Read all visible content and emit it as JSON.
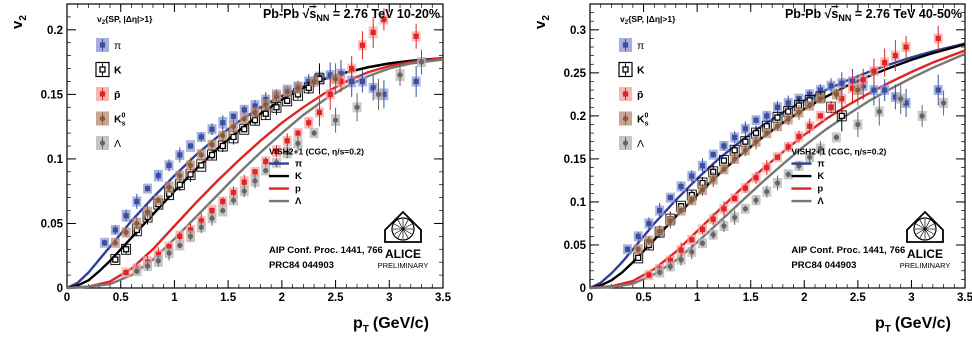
{
  "chart_data": [
    {
      "type": "scatter",
      "title": "Pb-Pb √sNN = 2.76 TeV 10-20%",
      "title_parts": {
        "system": "Pb-Pb",
        "energy_symbol": "s",
        "energy_subscript": "NN",
        "energy": "= 2.76 TeV",
        "centrality": "10-20%"
      },
      "xlabel": "p",
      "xlabel_sub": "T",
      "xlabel_unit": "(GeV/c)",
      "ylabel": "v",
      "ylabel_sub": "2",
      "xlim": [
        0,
        3.5
      ],
      "ylim": [
        0,
        0.22
      ],
      "xticks": [
        "0",
        "0.5",
        "1",
        "1.5",
        "2",
        "2.5",
        "3",
        "3.5"
      ],
      "yticks": [
        "0",
        "0.05",
        "0.1",
        "0.15",
        "0.2"
      ],
      "legend_title": "v2{SP, |Δη|>1}",
      "series": [
        {
          "name": "π",
          "color": "#3a4fa0",
          "syscolor": "#8f9ad6",
          "marker": "square",
          "x": [
            0.35,
            0.45,
            0.55,
            0.65,
            0.75,
            0.85,
            0.95,
            1.05,
            1.15,
            1.25,
            1.35,
            1.45,
            1.55,
            1.65,
            1.75,
            1.85,
            1.95,
            2.05,
            2.15,
            2.25,
            2.35,
            2.45,
            2.55,
            2.65,
            2.75,
            2.85,
            2.95,
            3.25
          ],
          "y": [
            0.035,
            0.045,
            0.056,
            0.067,
            0.077,
            0.087,
            0.095,
            0.103,
            0.11,
            0.117,
            0.123,
            0.128,
            0.133,
            0.138,
            0.141,
            0.146,
            0.15,
            0.153,
            0.156,
            0.16,
            0.163,
            0.165,
            0.166,
            0.16,
            0.16,
            0.155,
            0.15,
            0.16
          ]
        },
        {
          "name": "K",
          "color": "#000000",
          "syscolor": "#ffffff",
          "marker": "open-square",
          "x": [
            0.45,
            0.55,
            0.65,
            0.75,
            0.85,
            0.95,
            1.05,
            1.15,
            1.25,
            1.35,
            1.45,
            1.55,
            1.65,
            1.75,
            1.85,
            1.95,
            2.05,
            2.15,
            2.25,
            2.35
          ],
          "y": [
            0.022,
            0.03,
            0.045,
            0.055,
            0.065,
            0.073,
            0.08,
            0.088,
            0.095,
            0.103,
            0.11,
            0.117,
            0.123,
            0.13,
            0.135,
            0.14,
            0.145,
            0.15,
            0.155,
            0.162
          ]
        },
        {
          "name": "p̄",
          "color": "#e02424",
          "syscolor": "#f4a5a5",
          "marker": "square",
          "x": [
            0.55,
            0.65,
            0.75,
            0.85,
            0.95,
            1.05,
            1.15,
            1.25,
            1.35,
            1.45,
            1.55,
            1.65,
            1.75,
            1.85,
            1.95,
            2.05,
            2.15,
            2.25,
            2.35,
            2.45,
            2.55,
            2.65,
            2.75,
            2.85,
            2.95,
            3.25
          ],
          "y": [
            0.012,
            0.015,
            0.02,
            0.026,
            0.032,
            0.04,
            0.045,
            0.052,
            0.06,
            0.067,
            0.074,
            0.082,
            0.09,
            0.098,
            0.106,
            0.114,
            0.12,
            0.128,
            0.136,
            0.15,
            0.16,
            0.17,
            0.188,
            0.198,
            0.208,
            0.195
          ]
        },
        {
          "name": "K0s",
          "color": "#8b5a3c",
          "syscolor": "#b98f79",
          "marker": "circle",
          "x": [
            0.45,
            0.55,
            0.65,
            0.75,
            0.85,
            0.95,
            1.05,
            1.15,
            1.25,
            1.35,
            1.45,
            1.55,
            1.65,
            1.75,
            1.85,
            1.95,
            2.05,
            2.15,
            2.3,
            2.5
          ],
          "y": [
            0.035,
            0.043,
            0.05,
            0.059,
            0.068,
            0.078,
            0.087,
            0.095,
            0.103,
            0.111,
            0.118,
            0.125,
            0.131,
            0.136,
            0.142,
            0.148,
            0.152,
            0.155,
            0.16,
            0.162
          ]
        },
        {
          "name": "Λ",
          "color": "#666666",
          "syscolor": "#b5b5b5",
          "marker": "circle",
          "x": [
            0.65,
            0.75,
            0.85,
            0.95,
            1.05,
            1.15,
            1.25,
            1.35,
            1.45,
            1.55,
            1.65,
            1.75,
            1.85,
            1.95,
            2.05,
            2.15,
            2.3,
            2.5,
            2.7,
            2.9,
            3.1,
            3.3
          ],
          "y": [
            0.013,
            0.017,
            0.021,
            0.027,
            0.033,
            0.04,
            0.047,
            0.054,
            0.06,
            0.068,
            0.075,
            0.083,
            0.091,
            0.097,
            0.105,
            0.112,
            0.12,
            0.13,
            0.14,
            0.15,
            0.165,
            0.175
          ]
        }
      ],
      "model_title": "VISH2+1 (CGC, η/s=0.2)",
      "model_curves": [
        {
          "name": "π",
          "color": "#2e3f99",
          "x": [
            0,
            0.1,
            0.2,
            0.3,
            0.4,
            0.6,
            0.8,
            1.0,
            1.2,
            1.4,
            1.6,
            1.8,
            2.0,
            2.2,
            2.4,
            2.6,
            2.8,
            3.0,
            3.2,
            3.5
          ],
          "y": [
            0,
            0.004,
            0.012,
            0.022,
            0.032,
            0.052,
            0.07,
            0.087,
            0.103,
            0.117,
            0.129,
            0.14,
            0.149,
            0.156,
            0.162,
            0.167,
            0.171,
            0.174,
            0.176,
            0.178
          ]
        },
        {
          "name": "K",
          "color": "#000000",
          "x": [
            0,
            0.1,
            0.2,
            0.3,
            0.4,
            0.6,
            0.8,
            1.0,
            1.2,
            1.4,
            1.6,
            1.8,
            2.0,
            2.2,
            2.4,
            2.6,
            2.8,
            3.0,
            3.2,
            3.5
          ],
          "y": [
            0,
            0.002,
            0.006,
            0.013,
            0.021,
            0.039,
            0.057,
            0.075,
            0.092,
            0.108,
            0.122,
            0.135,
            0.146,
            0.155,
            0.162,
            0.167,
            0.171,
            0.174,
            0.176,
            0.178
          ]
        },
        {
          "name": "p",
          "color": "#e02424",
          "x": [
            0,
            0.2,
            0.4,
            0.6,
            0.8,
            1.0,
            1.2,
            1.4,
            1.6,
            1.8,
            2.0,
            2.2,
            2.4,
            2.6,
            2.8,
            3.0,
            3.2,
            3.5
          ],
          "y": [
            0,
            0.001,
            0.005,
            0.015,
            0.03,
            0.048,
            0.066,
            0.083,
            0.099,
            0.114,
            0.128,
            0.14,
            0.151,
            0.16,
            0.167,
            0.172,
            0.175,
            0.178
          ]
        },
        {
          "name": "Λ",
          "color": "#777777",
          "x": [
            0,
            0.2,
            0.4,
            0.6,
            0.8,
            1.0,
            1.2,
            1.4,
            1.6,
            1.8,
            2.0,
            2.2,
            2.4,
            2.6,
            2.8,
            3.0,
            3.2,
            3.5
          ],
          "y": [
            0,
            0.001,
            0.003,
            0.01,
            0.022,
            0.038,
            0.055,
            0.072,
            0.089,
            0.105,
            0.12,
            0.134,
            0.146,
            0.156,
            0.164,
            0.17,
            0.174,
            0.177
          ]
        }
      ],
      "reference": [
        "AIP Conf. Proc. 1441, 766",
        "PRC84 044903"
      ],
      "logo_text": "ALICE",
      "logo_sub": "PRELIMINARY"
    },
    {
      "type": "scatter",
      "title": "Pb-Pb √sNN = 2.76 TeV 40-50%",
      "title_parts": {
        "system": "Pb-Pb",
        "energy_symbol": "s",
        "energy_subscript": "NN",
        "energy": "= 2.76 TeV",
        "centrality": "40-50%"
      },
      "xlabel": "p",
      "xlabel_sub": "T",
      "xlabel_unit": "(GeV/c)",
      "ylabel": "v",
      "ylabel_sub": "2",
      "xlim": [
        0,
        3.5
      ],
      "ylim": [
        0,
        0.33
      ],
      "xticks": [
        "0",
        "0.5",
        "1",
        "1.5",
        "2",
        "2.5",
        "3",
        "3.5"
      ],
      "yticks": [
        "0",
        "0.05",
        "0.1",
        "0.15",
        "0.2",
        "0.25",
        "0.3"
      ],
      "legend_title": "v2{SP, |Δη|>1}",
      "series": [
        {
          "name": "π",
          "color": "#3a4fa0",
          "syscolor": "#8f9ad6",
          "marker": "square",
          "x": [
            0.35,
            0.45,
            0.55,
            0.65,
            0.75,
            0.85,
            0.95,
            1.05,
            1.15,
            1.25,
            1.35,
            1.45,
            1.55,
            1.65,
            1.75,
            1.85,
            1.95,
            2.05,
            2.15,
            2.25,
            2.35,
            2.45,
            2.55,
            2.65,
            2.75,
            2.85,
            2.95,
            3.25
          ],
          "y": [
            0.045,
            0.06,
            0.075,
            0.09,
            0.105,
            0.118,
            0.13,
            0.142,
            0.155,
            0.165,
            0.175,
            0.185,
            0.195,
            0.2,
            0.21,
            0.215,
            0.22,
            0.225,
            0.23,
            0.235,
            0.238,
            0.24,
            0.235,
            0.23,
            0.23,
            0.222,
            0.215,
            0.23
          ]
        },
        {
          "name": "K",
          "color": "#000000",
          "syscolor": "#ffffff",
          "marker": "open-square",
          "x": [
            0.45,
            0.55,
            0.65,
            0.75,
            0.85,
            0.95,
            1.05,
            1.15,
            1.25,
            1.35,
            1.45,
            1.55,
            1.65,
            1.75,
            1.85,
            1.95,
            2.05,
            2.15,
            2.25,
            2.35
          ],
          "y": [
            0.035,
            0.05,
            0.065,
            0.08,
            0.095,
            0.108,
            0.122,
            0.135,
            0.148,
            0.16,
            0.17,
            0.18,
            0.188,
            0.198,
            0.205,
            0.212,
            0.218,
            0.222,
            0.21,
            0.2
          ]
        },
        {
          "name": "p̄",
          "color": "#e02424",
          "syscolor": "#f4a5a5",
          "marker": "square",
          "x": [
            0.55,
            0.65,
            0.75,
            0.85,
            0.95,
            1.05,
            1.15,
            1.25,
            1.35,
            1.45,
            1.55,
            1.65,
            1.75,
            1.85,
            1.95,
            2.05,
            2.15,
            2.25,
            2.35,
            2.45,
            2.55,
            2.65,
            2.75,
            2.85,
            2.95,
            3.25
          ],
          "y": [
            0.015,
            0.022,
            0.032,
            0.044,
            0.056,
            0.068,
            0.08,
            0.092,
            0.104,
            0.116,
            0.128,
            0.14,
            0.152,
            0.164,
            0.176,
            0.188,
            0.2,
            0.21,
            0.22,
            0.232,
            0.242,
            0.252,
            0.262,
            0.27,
            0.28,
            0.29
          ]
        },
        {
          "name": "K0s",
          "color": "#8b5a3c",
          "syscolor": "#b98f79",
          "marker": "circle",
          "x": [
            0.45,
            0.55,
            0.65,
            0.75,
            0.85,
            0.95,
            1.05,
            1.15,
            1.25,
            1.35,
            1.45,
            1.55,
            1.65,
            1.75,
            1.85,
            1.95,
            2.05,
            2.15,
            2.3,
            2.5
          ],
          "y": [
            0.045,
            0.055,
            0.066,
            0.078,
            0.09,
            0.102,
            0.114,
            0.126,
            0.138,
            0.15,
            0.16,
            0.17,
            0.18,
            0.188,
            0.196,
            0.204,
            0.212,
            0.22,
            0.225,
            0.23
          ]
        },
        {
          "name": "Λ",
          "color": "#666666",
          "syscolor": "#b5b5b5",
          "marker": "circle",
          "x": [
            0.65,
            0.75,
            0.85,
            0.95,
            1.05,
            1.15,
            1.25,
            1.35,
            1.45,
            1.55,
            1.65,
            1.75,
            1.85,
            1.95,
            2.05,
            2.15,
            2.3,
            2.5,
            2.7,
            2.9,
            3.1,
            3.3
          ],
          "y": [
            0.018,
            0.025,
            0.033,
            0.042,
            0.052,
            0.062,
            0.072,
            0.082,
            0.092,
            0.102,
            0.112,
            0.122,
            0.132,
            0.142,
            0.152,
            0.162,
            0.175,
            0.19,
            0.205,
            0.22,
            0.2,
            0.215
          ]
        }
      ],
      "model_title": "VISH2+1 (CGC, η/s=0.2)",
      "model_curves": [
        {
          "name": "π",
          "color": "#2e3f99",
          "x": [
            0,
            0.1,
            0.2,
            0.3,
            0.4,
            0.6,
            0.8,
            1.0,
            1.2,
            1.4,
            1.6,
            1.8,
            2.0,
            2.2,
            2.4,
            2.6,
            2.8,
            3.0,
            3.2,
            3.5
          ],
          "y": [
            0,
            0.006,
            0.017,
            0.03,
            0.045,
            0.075,
            0.102,
            0.127,
            0.15,
            0.17,
            0.188,
            0.204,
            0.218,
            0.23,
            0.241,
            0.251,
            0.26,
            0.268,
            0.275,
            0.284
          ]
        },
        {
          "name": "K",
          "color": "#000000",
          "x": [
            0,
            0.1,
            0.2,
            0.3,
            0.4,
            0.6,
            0.8,
            1.0,
            1.2,
            1.4,
            1.6,
            1.8,
            2.0,
            2.2,
            2.4,
            2.6,
            2.8,
            3.0,
            3.2,
            3.5
          ],
          "y": [
            0,
            0.003,
            0.009,
            0.018,
            0.03,
            0.056,
            0.083,
            0.108,
            0.132,
            0.154,
            0.174,
            0.192,
            0.208,
            0.222,
            0.235,
            0.246,
            0.256,
            0.265,
            0.273,
            0.283
          ]
        },
        {
          "name": "p",
          "color": "#e02424",
          "x": [
            0,
            0.2,
            0.4,
            0.6,
            0.8,
            1.0,
            1.2,
            1.4,
            1.6,
            1.8,
            2.0,
            2.2,
            2.4,
            2.6,
            2.8,
            3.0,
            3.2,
            3.5
          ],
          "y": [
            0,
            0.002,
            0.008,
            0.022,
            0.042,
            0.066,
            0.09,
            0.114,
            0.137,
            0.158,
            0.178,
            0.196,
            0.212,
            0.226,
            0.239,
            0.251,
            0.262,
            0.276
          ]
        },
        {
          "name": "Λ",
          "color": "#777777",
          "x": [
            0,
            0.2,
            0.4,
            0.6,
            0.8,
            1.0,
            1.2,
            1.4,
            1.6,
            1.8,
            2.0,
            2.2,
            2.4,
            2.6,
            2.8,
            3.0,
            3.2,
            3.5
          ],
          "y": [
            0,
            0.001,
            0.005,
            0.016,
            0.032,
            0.053,
            0.076,
            0.099,
            0.122,
            0.144,
            0.165,
            0.184,
            0.201,
            0.217,
            0.231,
            0.244,
            0.256,
            0.272
          ]
        }
      ],
      "reference": [
        "AIP Conf. Proc. 1441, 766",
        "PRC84 044903"
      ],
      "logo_text": "ALICE",
      "logo_sub": "PRELIMINARY"
    }
  ]
}
